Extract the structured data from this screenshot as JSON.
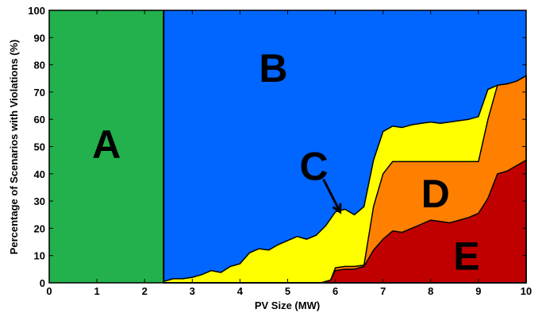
{
  "chart_data": {
    "type": "area",
    "xlabel": "PV Size (MW)",
    "ylabel": "Percentage of Scenarios with Violations (%)",
    "xlim": [
      0,
      10
    ],
    "ylim": [
      0,
      100
    ],
    "x_ticks": [
      "0",
      "1",
      "2",
      "3",
      "4",
      "5",
      "6",
      "7",
      "8",
      "9",
      "10"
    ],
    "y_ticks": [
      "0",
      "10",
      "20",
      "30",
      "40",
      "50",
      "60",
      "70",
      "80",
      "90",
      "100"
    ],
    "grid": false,
    "colors": {
      "A": "#22b14c",
      "B": "#0066ff",
      "C": "#ffff00",
      "D": "#ff8000",
      "E": "#c00000"
    },
    "region_A_boundary_x": 2.4,
    "series": [
      {
        "name": "C",
        "points": [
          [
            2.4,
            0.5
          ],
          [
            2.6,
            1.5
          ],
          [
            2.8,
            1.5
          ],
          [
            3.0,
            2.0
          ],
          [
            3.2,
            3.0
          ],
          [
            3.4,
            4.5
          ],
          [
            3.6,
            3.8
          ],
          [
            3.8,
            6.0
          ],
          [
            4.0,
            7.0
          ],
          [
            4.2,
            11.0
          ],
          [
            4.4,
            12.5
          ],
          [
            4.6,
            12.0
          ],
          [
            4.8,
            14.0
          ],
          [
            5.0,
            15.5
          ],
          [
            5.2,
            17.0
          ],
          [
            5.4,
            16.0
          ],
          [
            5.6,
            17.5
          ],
          [
            5.8,
            21.0
          ],
          [
            6.0,
            26.0
          ],
          [
            6.2,
            27.0
          ],
          [
            6.4,
            25.0
          ],
          [
            6.6,
            28.0
          ],
          [
            6.8,
            45.0
          ],
          [
            7.0,
            55.5
          ],
          [
            7.2,
            57.5
          ],
          [
            7.4,
            57.0
          ],
          [
            7.6,
            58.0
          ],
          [
            7.8,
            58.5
          ],
          [
            8.0,
            59.0
          ],
          [
            8.2,
            58.5
          ],
          [
            8.4,
            59.0
          ],
          [
            8.6,
            59.5
          ],
          [
            8.8,
            60.0
          ],
          [
            9.0,
            61.0
          ],
          [
            9.2,
            71.0
          ],
          [
            9.4,
            72.5
          ],
          [
            9.6,
            73.0
          ],
          [
            9.8,
            73.5
          ],
          [
            10.0,
            76.0
          ]
        ]
      },
      {
        "name": "D",
        "points": [
          [
            2.4,
            0.0
          ],
          [
            5.7,
            0.0
          ],
          [
            5.9,
            1.0
          ],
          [
            6.0,
            5.5
          ],
          [
            6.2,
            6.0
          ],
          [
            6.4,
            6.0
          ],
          [
            6.6,
            6.5
          ],
          [
            6.8,
            28.0
          ],
          [
            7.0,
            40.0
          ],
          [
            7.2,
            44.5
          ],
          [
            9.0,
            44.5
          ],
          [
            9.2,
            60.0
          ],
          [
            9.4,
            72.5
          ],
          [
            9.6,
            73.0
          ],
          [
            9.8,
            74.0
          ],
          [
            10.0,
            76.0
          ]
        ]
      },
      {
        "name": "E",
        "points": [
          [
            2.4,
            0.0
          ],
          [
            5.7,
            0.0
          ],
          [
            5.9,
            1.0
          ],
          [
            6.0,
            4.5
          ],
          [
            6.2,
            5.0
          ],
          [
            6.4,
            5.0
          ],
          [
            6.6,
            6.0
          ],
          [
            6.8,
            12.0
          ],
          [
            7.0,
            16.0
          ],
          [
            7.2,
            19.0
          ],
          [
            7.4,
            18.5
          ],
          [
            7.6,
            20.0
          ],
          [
            7.8,
            21.5
          ],
          [
            8.0,
            23.0
          ],
          [
            8.2,
            22.5
          ],
          [
            8.4,
            22.0
          ],
          [
            8.6,
            23.0
          ],
          [
            8.8,
            24.0
          ],
          [
            9.0,
            25.5
          ],
          [
            9.2,
            31.0
          ],
          [
            9.4,
            40.0
          ],
          [
            9.6,
            41.0
          ],
          [
            9.8,
            43.0
          ],
          [
            10.0,
            45.0
          ]
        ]
      }
    ],
    "region_labels": [
      {
        "text": "A",
        "x": 1.2,
        "y": 51
      },
      {
        "text": "B",
        "x": 4.7,
        "y": 79
      },
      {
        "text": "C",
        "x": 5.55,
        "y": 43
      },
      {
        "text": "D",
        "x": 8.1,
        "y": 33
      },
      {
        "text": "E",
        "x": 8.75,
        "y": 10
      }
    ],
    "arrow": {
      "from": [
        5.75,
        38
      ],
      "to": [
        6.1,
        26
      ]
    }
  }
}
